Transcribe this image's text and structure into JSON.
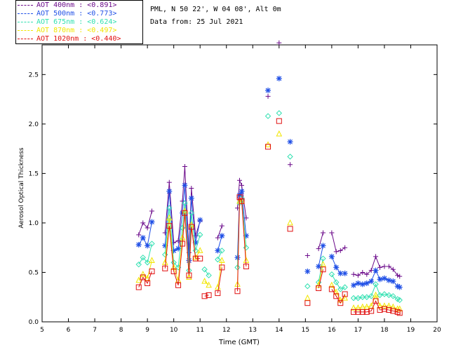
{
  "header": {
    "location": "PML, N 50 22', W 04 08', Alt 0m",
    "date_line": "Data from: 25 Jul 2021"
  },
  "legend": [
    {
      "label": "AOT  400nm : <0.891>",
      "color": "#6b0a8a"
    },
    {
      "label": "AOT  500nm : <0.773>",
      "color": "#1f4fe6"
    },
    {
      "label": "AOT  675nm : <0.624>",
      "color": "#2fe0b0"
    },
    {
      "label": "AOT  870nm : <0.497>",
      "color": "#f2e600"
    },
    {
      "label": "AOT 1020nm : <0.440>",
      "color": "#e01010"
    }
  ],
  "chart_data": {
    "type": "line",
    "title": "",
    "xlabel": "Time (GMT)",
    "ylabel": "Aerosol Optical Thickness",
    "xlim": [
      5,
      20
    ],
    "ylim": [
      0.0,
      2.8
    ],
    "xticks": [
      5,
      6,
      7,
      8,
      9,
      10,
      11,
      12,
      13,
      14,
      15,
      16,
      17,
      18,
      19,
      20
    ],
    "yticks": [
      0.0,
      0.5,
      1.0,
      1.5,
      2.0,
      2.5
    ],
    "ytick_labels": [
      "0.0",
      "0.5",
      "1.0",
      "1.5",
      "2.0",
      "2.5"
    ],
    "series": [
      {
        "name": "AOT 400nm",
        "color": "#6b0a8a",
        "marker": "plus",
        "segments": [
          [
            [
              8.67,
              0.88
            ],
            [
              8.83,
              1.0
            ],
            [
              9.0,
              0.95
            ],
            [
              9.17,
              1.12
            ]
          ],
          [
            [
              9.67,
              0.9
            ],
            [
              9.83,
              1.41
            ],
            [
              10.0,
              0.8
            ],
            [
              10.17,
              0.82
            ],
            [
              10.33,
              1.22
            ],
            [
              10.42,
              1.57
            ],
            [
              10.58,
              0.7
            ],
            [
              10.67,
              1.35
            ],
            [
              10.83,
              0.87
            ],
            [
              11.0,
              1.02
            ]
          ],
          [
            [
              11.67,
              0.85
            ],
            [
              11.83,
              0.97
            ]
          ],
          [
            [
              12.42,
              1.15
            ],
            [
              12.5,
              1.43
            ],
            [
              12.58,
              1.38
            ],
            [
              12.75,
              1.05
            ]
          ],
          [
            [
              13.58,
              2.28
            ]
          ],
          [
            [
              14.0,
              2.82
            ]
          ],
          [
            [
              14.42,
              1.59
            ]
          ],
          [
            [
              15.08,
              0.67
            ]
          ],
          [
            [
              15.5,
              0.74
            ],
            [
              15.67,
              0.9
            ]
          ],
          [
            [
              16.0,
              0.9
            ],
            [
              16.17,
              0.71
            ],
            [
              16.33,
              0.72
            ],
            [
              16.5,
              0.75
            ]
          ],
          [
            [
              16.83,
              0.48
            ],
            [
              17.0,
              0.47
            ],
            [
              17.17,
              0.5
            ],
            [
              17.33,
              0.48
            ],
            [
              17.5,
              0.52
            ],
            [
              17.67,
              0.66
            ],
            [
              17.83,
              0.55
            ],
            [
              18.0,
              0.56
            ],
            [
              18.17,
              0.56
            ],
            [
              18.33,
              0.53
            ],
            [
              18.5,
              0.47
            ],
            [
              18.58,
              0.46
            ]
          ]
        ]
      },
      {
        "name": "AOT 500nm",
        "color": "#1f4fe6",
        "marker": "star",
        "segments": [
          [
            [
              8.67,
              0.78
            ],
            [
              8.83,
              0.85
            ],
            [
              9.0,
              0.77
            ],
            [
              9.17,
              1.01
            ]
          ],
          [
            [
              9.67,
              0.77
            ],
            [
              9.83,
              1.32
            ],
            [
              10.0,
              0.72
            ],
            [
              10.17,
              0.74
            ],
            [
              10.33,
              1.1
            ],
            [
              10.42,
              1.38
            ],
            [
              10.58,
              0.62
            ],
            [
              10.67,
              1.25
            ],
            [
              10.83,
              0.8
            ],
            [
              11.0,
              1.03
            ]
          ],
          [
            [
              11.67,
              0.72
            ],
            [
              11.83,
              0.87
            ]
          ],
          [
            [
              12.42,
              0.65
            ],
            [
              12.5,
              1.28
            ],
            [
              12.58,
              1.32
            ],
            [
              12.75,
              0.87
            ]
          ],
          [
            [
              13.58,
              2.34
            ]
          ],
          [
            [
              14.0,
              2.46
            ]
          ],
          [
            [
              14.42,
              1.82
            ]
          ],
          [
            [
              15.08,
              0.51
            ]
          ],
          [
            [
              15.5,
              0.56
            ],
            [
              15.67,
              0.77
            ]
          ],
          [
            [
              16.0,
              0.66
            ],
            [
              16.17,
              0.55
            ],
            [
              16.33,
              0.49
            ],
            [
              16.5,
              0.49
            ]
          ],
          [
            [
              16.83,
              0.37
            ],
            [
              17.0,
              0.39
            ],
            [
              17.17,
              0.38
            ],
            [
              17.33,
              0.39
            ],
            [
              17.5,
              0.41
            ],
            [
              17.67,
              0.52
            ],
            [
              17.83,
              0.43
            ],
            [
              18.0,
              0.44
            ],
            [
              18.17,
              0.42
            ],
            [
              18.33,
              0.41
            ],
            [
              18.5,
              0.36
            ],
            [
              18.58,
              0.35
            ]
          ]
        ]
      },
      {
        "name": "AOT 675nm",
        "color": "#2fe0b0",
        "marker": "diamond",
        "segments": [
          [
            [
              8.67,
              0.58
            ],
            [
              8.83,
              0.65
            ],
            [
              9.0,
              0.6
            ],
            [
              9.17,
              0.79
            ]
          ],
          [
            [
              9.67,
              0.68
            ],
            [
              9.83,
              1.15
            ],
            [
              10.0,
              0.6
            ],
            [
              10.17,
              0.55
            ],
            [
              10.33,
              0.95
            ],
            [
              10.42,
              1.2
            ],
            [
              10.58,
              0.52
            ],
            [
              10.67,
              1.1
            ],
            [
              10.83,
              0.72
            ],
            [
              11.0,
              0.88
            ]
          ],
          [
            [
              11.17,
              0.53
            ],
            [
              11.33,
              0.47
            ]
          ],
          [
            [
              11.67,
              0.63
            ],
            [
              11.83,
              0.72
            ]
          ],
          [
            [
              12.42,
              0.55
            ],
            [
              12.5,
              1.2
            ],
            [
              12.58,
              1.25
            ],
            [
              12.75,
              0.75
            ]
          ],
          [
            [
              13.58,
              2.08
            ]
          ],
          [
            [
              14.0,
              2.11
            ]
          ],
          [
            [
              14.42,
              1.67
            ]
          ],
          [
            [
              15.08,
              0.36
            ]
          ],
          [
            [
              15.5,
              0.4
            ],
            [
              15.67,
              0.64
            ]
          ],
          [
            [
              16.0,
              0.48
            ],
            [
              16.17,
              0.4
            ],
            [
              16.33,
              0.33
            ],
            [
              16.5,
              0.35
            ]
          ],
          [
            [
              16.83,
              0.24
            ],
            [
              17.0,
              0.24
            ],
            [
              17.17,
              0.25
            ],
            [
              17.33,
              0.25
            ],
            [
              17.5,
              0.26
            ],
            [
              17.67,
              0.38
            ],
            [
              17.83,
              0.27
            ],
            [
              18.0,
              0.28
            ],
            [
              18.17,
              0.27
            ],
            [
              18.33,
              0.26
            ],
            [
              18.5,
              0.23
            ],
            [
              18.58,
              0.22
            ]
          ]
        ]
      },
      {
        "name": "AOT 870nm",
        "color": "#f2e600",
        "marker": "triangle",
        "segments": [
          [
            [
              8.67,
              0.42
            ],
            [
              8.83,
              0.48
            ],
            [
              9.0,
              0.44
            ],
            [
              9.17,
              0.62
            ]
          ],
          [
            [
              9.67,
              0.6
            ],
            [
              9.83,
              1.05
            ],
            [
              10.0,
              0.55
            ],
            [
              10.17,
              0.42
            ],
            [
              10.33,
              0.85
            ],
            [
              10.42,
              1.12
            ],
            [
              10.58,
              0.45
            ],
            [
              10.67,
              0.98
            ],
            [
              10.83,
              0.65
            ],
            [
              11.0,
              0.72
            ]
          ],
          [
            [
              11.17,
              0.41
            ],
            [
              11.33,
              0.37
            ]
          ],
          [
            [
              11.67,
              0.35
            ],
            [
              11.83,
              0.62
            ]
          ],
          [
            [
              12.42,
              0.38
            ],
            [
              12.5,
              1.22
            ],
            [
              12.58,
              1.22
            ],
            [
              12.75,
              0.62
            ]
          ],
          [
            [
              13.58,
              1.79
            ]
          ],
          [
            [
              14.0,
              1.9
            ]
          ],
          [
            [
              14.42,
              1.0
            ]
          ],
          [
            [
              15.08,
              0.24
            ]
          ],
          [
            [
              15.5,
              0.37
            ],
            [
              15.67,
              0.58
            ]
          ],
          [
            [
              16.0,
              0.37
            ],
            [
              16.17,
              0.3
            ],
            [
              16.33,
              0.22
            ],
            [
              16.5,
              0.24
            ]
          ],
          [
            [
              16.83,
              0.14
            ],
            [
              17.0,
              0.14
            ],
            [
              17.17,
              0.15
            ],
            [
              17.33,
              0.15
            ],
            [
              17.5,
              0.16
            ],
            [
              17.67,
              0.27
            ],
            [
              17.83,
              0.16
            ],
            [
              18.0,
              0.16
            ],
            [
              18.17,
              0.16
            ],
            [
              18.33,
              0.15
            ],
            [
              18.5,
              0.13
            ],
            [
              18.58,
              0.13
            ]
          ]
        ]
      },
      {
        "name": "AOT 1020nm",
        "color": "#e01010",
        "marker": "square",
        "segments": [
          [
            [
              8.67,
              0.35
            ],
            [
              8.83,
              0.45
            ],
            [
              9.0,
              0.39
            ],
            [
              9.17,
              0.51
            ]
          ],
          [
            [
              9.67,
              0.54
            ],
            [
              9.83,
              0.97
            ],
            [
              10.0,
              0.51
            ],
            [
              10.17,
              0.37
            ],
            [
              10.33,
              0.79
            ],
            [
              10.42,
              1.1
            ],
            [
              10.58,
              0.47
            ],
            [
              10.67,
              0.96
            ],
            [
              10.83,
              0.64
            ],
            [
              11.0,
              0.64
            ]
          ],
          [
            [
              11.17,
              0.26
            ],
            [
              11.33,
              0.27
            ]
          ],
          [
            [
              11.67,
              0.29
            ],
            [
              11.83,
              0.55
            ]
          ],
          [
            [
              12.42,
              0.31
            ],
            [
              12.5,
              1.26
            ],
            [
              12.58,
              1.22
            ],
            [
              12.75,
              0.56
            ]
          ],
          [
            [
              13.58,
              1.77
            ]
          ],
          [
            [
              14.0,
              2.03
            ]
          ],
          [
            [
              14.42,
              0.94
            ]
          ],
          [
            [
              15.08,
              0.19
            ]
          ],
          [
            [
              15.5,
              0.34
            ],
            [
              15.67,
              0.53
            ]
          ],
          [
            [
              16.0,
              0.33
            ],
            [
              16.17,
              0.26
            ],
            [
              16.33,
              0.19
            ],
            [
              16.5,
              0.28
            ]
          ],
          [
            [
              16.83,
              0.1
            ],
            [
              17.0,
              0.1
            ],
            [
              17.17,
              0.1
            ],
            [
              17.33,
              0.1
            ],
            [
              17.5,
              0.11
            ],
            [
              17.67,
              0.21
            ],
            [
              17.83,
              0.12
            ],
            [
              18.0,
              0.13
            ],
            [
              18.17,
              0.12
            ],
            [
              18.33,
              0.11
            ],
            [
              18.5,
              0.1
            ],
            [
              18.58,
              0.09
            ]
          ]
        ]
      }
    ]
  }
}
